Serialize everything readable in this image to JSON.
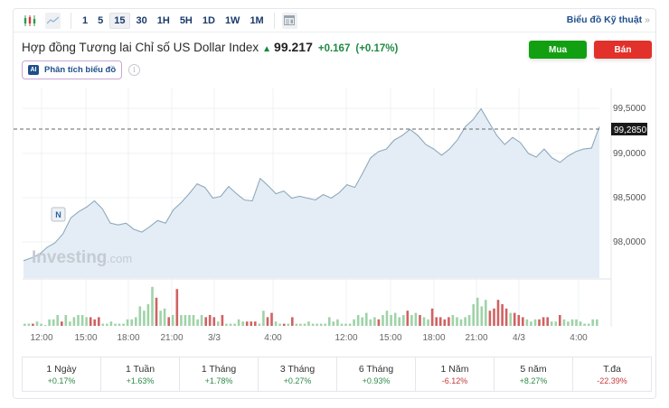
{
  "toolbar": {
    "chart_types": [
      {
        "name": "candlestick-icon"
      },
      {
        "name": "area-chart-icon",
        "active": true
      }
    ],
    "timeframes": [
      {
        "label": "1",
        "active": false
      },
      {
        "label": "5",
        "active": false
      },
      {
        "label": "15",
        "active": true
      },
      {
        "label": "30",
        "active": false
      },
      {
        "label": "1H",
        "active": false
      },
      {
        "label": "5H",
        "active": false
      },
      {
        "label": "1D",
        "active": false
      },
      {
        "label": "1W",
        "active": false
      },
      {
        "label": "1M",
        "active": false
      }
    ],
    "technical_link": "Biểu đồ Kỹ thuật",
    "technical_arrow": "»"
  },
  "instrument": {
    "title": "Hợp đồng Tương lai Chỉ số US Dollar Index",
    "direction_icon": "▲",
    "price": "99.217",
    "change": "+0.167",
    "change_pct": "(+0.17%)"
  },
  "actions": {
    "buy_label": "Mua",
    "sell_label": "Bán",
    "ai_badge": "AI",
    "ai_label": "Phân tích biểu đồ",
    "info_icon": "i"
  },
  "colors": {
    "buy": "#12a012",
    "sell": "#e2302a",
    "line": "#8fa9bc",
    "area": "#e4edf5",
    "vol_up": "#9fd3a8",
    "vol_down": "#d06262",
    "positive": "#2b8a48",
    "negative": "#c53a3a"
  },
  "chart": {
    "watermark_brand": "Investing",
    "watermark_suffix": ".com",
    "marker_label": "N",
    "current_price_label": "99,2850",
    "y_ticks": [
      "99,5000",
      "99,0000",
      "98,5000",
      "98,0000"
    ],
    "x_ticks": [
      "12:00",
      "15:00",
      "18:00",
      "21:00",
      "3/3",
      "4:00",
      "12:00",
      "15:00",
      "18:00",
      "21:00",
      "4/3",
      "4:00"
    ]
  },
  "chart_data": {
    "type": "area",
    "title": "Hợp đồng Tương lai Chỉ số US Dollar Index (15 phút)",
    "xlabel": "",
    "ylabel": "",
    "x": [
      "12:00",
      "15:00",
      "18:00",
      "21:00",
      "3/3",
      "4:00",
      "12:00",
      "15:00",
      "18:00",
      "21:00",
      "4/3",
      "4:00"
    ],
    "ylim": [
      97.6,
      99.7
    ],
    "y_ticks": [
      98.0,
      98.5,
      99.0,
      99.5
    ],
    "current_price": 99.285,
    "grid": true,
    "series": [
      {
        "name": "Price",
        "values": [
          97.8,
          97.83,
          97.87,
          97.95,
          98.0,
          98.1,
          98.28,
          98.35,
          98.4,
          98.47,
          98.38,
          98.22,
          98.2,
          98.22,
          98.15,
          98.12,
          98.18,
          98.25,
          98.22,
          98.37,
          98.45,
          98.55,
          98.66,
          98.62,
          98.5,
          98.52,
          98.63,
          98.55,
          98.48,
          98.47,
          98.72,
          98.64,
          98.55,
          98.58,
          98.5,
          98.52,
          98.5,
          98.48,
          98.54,
          98.5,
          98.56,
          98.65,
          98.62,
          98.78,
          98.95,
          99.02,
          99.05,
          99.15,
          99.2,
          99.27,
          99.2,
          99.1,
          99.05,
          98.98,
          99.05,
          99.15,
          99.3,
          99.38,
          99.5,
          99.35,
          99.2,
          99.1,
          99.18,
          99.12,
          99.0,
          98.96,
          99.05,
          98.95,
          98.9,
          98.97,
          99.02,
          99.05,
          99.06,
          99.3
        ]
      }
    ],
    "volume": {
      "note": "approximate relative bar heights (0-1), green=up, red=down"
    }
  },
  "performance": [
    {
      "label": "1 Ngày",
      "value": "+0.17%",
      "sign": "pos"
    },
    {
      "label": "1 Tuần",
      "value": "+1.63%",
      "sign": "pos"
    },
    {
      "label": "1 Tháng",
      "value": "+1.78%",
      "sign": "pos"
    },
    {
      "label": "3 Tháng",
      "value": "+0.27%",
      "sign": "pos"
    },
    {
      "label": "6 Tháng",
      "value": "+0.93%",
      "sign": "pos"
    },
    {
      "label": "1 Năm",
      "value": "-6.12%",
      "sign": "neg"
    },
    {
      "label": "5 năm",
      "value": "+8.27%",
      "sign": "pos"
    },
    {
      "label": "T.đa",
      "value": "-22.39%",
      "sign": "neg"
    }
  ]
}
